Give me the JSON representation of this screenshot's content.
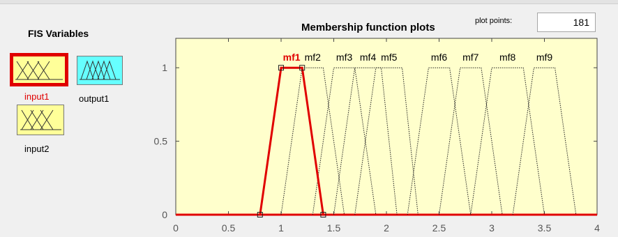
{
  "fis": {
    "title": "FIS Variables",
    "variables": [
      {
        "name": "input1",
        "kind": "input",
        "selected": true,
        "color": "#ffff99"
      },
      {
        "name": "output1",
        "kind": "output",
        "selected": false,
        "color": "#66ffff"
      },
      {
        "name": "input2",
        "kind": "input",
        "selected": false,
        "color": "#ffff99"
      }
    ]
  },
  "plot": {
    "title": "Membership function plots",
    "plot_points_label": "plot points:",
    "plot_points_value": "181"
  },
  "chart_data": {
    "type": "line",
    "title": "Membership function plots",
    "xlim": [
      0,
      4
    ],
    "ylim": [
      0,
      1.2
    ],
    "xticks": [
      "0",
      "0.5",
      "1",
      "1.5",
      "2",
      "2.5",
      "3",
      "3.5",
      "4"
    ],
    "yticks": [
      "0",
      "0.5",
      "1"
    ],
    "background": "#ffffcc",
    "selected_color": "#e00000",
    "series": [
      {
        "name": "mf1",
        "type": "trapmf",
        "params": [
          0.8,
          1.0,
          1.2,
          1.4
        ],
        "selected": true
      },
      {
        "name": "mf2",
        "type": "trapmf",
        "params": [
          1.0,
          1.2,
          1.4,
          1.6
        ],
        "selected": false
      },
      {
        "name": "mf3",
        "type": "trapmf",
        "params": [
          1.3,
          1.5,
          1.7,
          1.9
        ],
        "selected": false
      },
      {
        "name": "mf4",
        "type": "trapmf",
        "params": [
          1.5,
          1.7,
          1.95,
          2.1
        ],
        "selected": false
      },
      {
        "name": "mf5",
        "type": "trapmf",
        "params": [
          1.7,
          1.9,
          2.15,
          2.3
        ],
        "selected": false
      },
      {
        "name": "mf6",
        "type": "trapmf",
        "params": [
          2.2,
          2.4,
          2.6,
          2.8
        ],
        "selected": false
      },
      {
        "name": "mf7",
        "type": "trapmf",
        "params": [
          2.5,
          2.7,
          2.9,
          3.1
        ],
        "selected": false
      },
      {
        "name": "mf8",
        "type": "trapmf",
        "params": [
          2.8,
          3.0,
          3.3,
          3.5
        ],
        "selected": false
      },
      {
        "name": "mf9",
        "type": "trapmf",
        "params": [
          3.2,
          3.4,
          3.6,
          3.8
        ],
        "selected": false
      }
    ]
  }
}
